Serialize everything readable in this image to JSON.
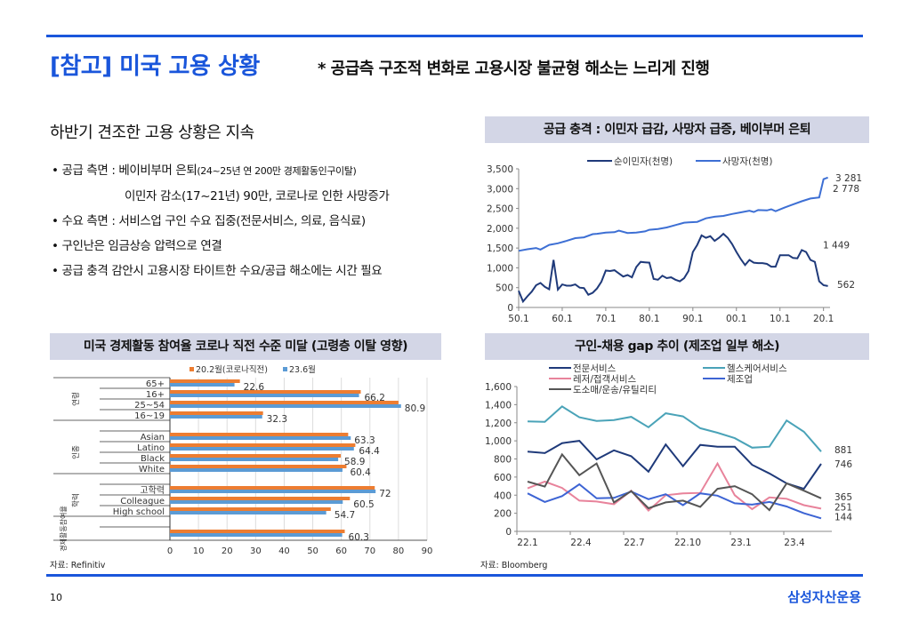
{
  "header": {
    "title": "[참고] 미국 고용 상황",
    "subtitle": "* 공급측 구조적 변화로 고용시장 불균형 해소는 느리게 진행"
  },
  "left": {
    "heading": "하반기 견조한 고용 상황은 지속",
    "bullets": [
      {
        "main": "• 공급 측면 : 베이비부머 은퇴",
        "small": "(24~25년 연 200만 경제활동인구이탈)"
      },
      {
        "main": "이민자 감소(17~21년) 90만, 코로나로 인한 사망증가",
        "small": ""
      },
      {
        "main": "• 수요 측면 : 서비스업 구인 수요 집중(전문서비스, 의료, 음식료)",
        "small": ""
      },
      {
        "main": "• 구인난은 임금상승 압력으로 연결",
        "small": ""
      },
      {
        "main": "• 공급 충격 감안시 고용시장 타이트한 수요/공급 해소에는 시간 필요",
        "small": ""
      }
    ]
  },
  "panels": {
    "supply_title": "공급 충격 : 이민자 급감, 사망자 급증, 베이부머 은퇴",
    "participation_title": "미국 경제활동 참여율 코로나 직전 수준 미달 (고령층 이탈 영향)",
    "gap_title": "구인-채용 gap 추이 (제조업 일부 해소)"
  },
  "sources": {
    "left": "자료: Refinitiv",
    "right": "자료: Bloomberg"
  },
  "footer": {
    "page": "10",
    "brand": "삼성자산운용"
  },
  "chart_data": [
    {
      "type": "line",
      "title": "공급 충격 : 이민자 급감, 사망자 급증, 베이부머 은퇴",
      "xlabel": "",
      "ylabel": "",
      "ylim": [
        0,
        3500
      ],
      "yticks": [
        0,
        500,
        1000,
        1500,
        2000,
        2500,
        3000,
        3500
      ],
      "ytick_labels": [
        "0",
        "500",
        "1,000",
        "1,500",
        "2,000",
        "2,500",
        "3,000",
        "3,500"
      ],
      "xtick_labels": [
        "50.1",
        "60.1",
        "70.1",
        "80.1",
        "90.1",
        "00.1",
        "10.1",
        "20.1"
      ],
      "x_start_year": 1950,
      "x_end_year": 2021.5,
      "legend": "top-center",
      "series": [
        {
          "name": "순이민자(천명)",
          "color": "#1f3a7a",
          "years": [
            1950,
            1951,
            1952,
            1953,
            1954,
            1955,
            1956,
            1957,
            1958,
            1959,
            1960,
            1961,
            1962,
            1963,
            1964,
            1965,
            1966,
            1967,
            1968,
            1969,
            1970,
            1971,
            1972,
            1973,
            1974,
            1975,
            1976,
            1977,
            1978,
            1979,
            1980,
            1981,
            1982,
            1983,
            1984,
            1985,
            1986,
            1987,
            1988,
            1989,
            1990,
            1991,
            1992,
            1993,
            1994,
            1995,
            1996,
            1997,
            1998,
            1999,
            2000,
            2001,
            2002,
            2003,
            2004,
            2005,
            2006,
            2007,
            2008,
            2009,
            2010,
            2011,
            2012,
            2013,
            2014,
            2015,
            2016,
            2017,
            2018,
            2019,
            2020,
            2021
          ],
          "values": [
            420,
            150,
            280,
            400,
            560,
            620,
            520,
            460,
            1200,
            450,
            580,
            550,
            550,
            580,
            500,
            490,
            320,
            370,
            480,
            650,
            930,
            920,
            940,
            860,
            780,
            820,
            760,
            1020,
            1150,
            1140,
            1130,
            720,
            700,
            800,
            740,
            760,
            700,
            660,
            740,
            920,
            1400,
            1580,
            1820,
            1760,
            1800,
            1680,
            1760,
            1860,
            1760,
            1600,
            1400,
            1220,
            1070,
            1200,
            1130,
            1120,
            1120,
            1100,
            1030,
            1030,
            1320,
            1320,
            1320,
            1250,
            1240,
            1449,
            1400,
            1200,
            1150,
            660,
            562,
            540
          ],
          "end_label": "562",
          "peak_label": "1 449"
        },
        {
          "name": "사망자(천명)",
          "color": "#3d6fd4",
          "years": [
            1950,
            1952,
            1954,
            1955,
            1957,
            1959,
            1961,
            1963,
            1965,
            1967,
            1968,
            1970,
            1972,
            1973,
            1975,
            1977,
            1979,
            1980,
            1982,
            1984,
            1986,
            1988,
            1989,
            1991,
            1993,
            1995,
            1997,
            1999,
            2001,
            2003,
            2004,
            2005,
            2007,
            2008,
            2009,
            2011,
            2013,
            2015,
            2017,
            2019,
            2020,
            2021
          ],
          "values": [
            1430,
            1470,
            1500,
            1460,
            1580,
            1620,
            1680,
            1750,
            1770,
            1850,
            1860,
            1890,
            1900,
            1940,
            1880,
            1890,
            1920,
            1960,
            1980,
            2020,
            2080,
            2140,
            2150,
            2160,
            2250,
            2290,
            2310,
            2360,
            2400,
            2440,
            2410,
            2460,
            2450,
            2480,
            2430,
            2520,
            2600,
            2680,
            2750,
            2778,
            3240,
            3281
          ],
          "end_label": "3 281",
          "mid_label": "2 778"
        }
      ]
    },
    {
      "type": "bar",
      "orientation": "horizontal",
      "title": "미국 경제활동 참여율 코로나 직전 수준 미달 (고령층 이탈 영향)",
      "xlim": [
        0,
        90
      ],
      "xticks": [
        0,
        10,
        20,
        30,
        40,
        50,
        60,
        70,
        80,
        90
      ],
      "legend": "top",
      "groups": [
        {
          "label": "연령",
          "categories": [
            "65+",
            "16+",
            "25~54",
            "16~19"
          ]
        },
        {
          "label": "인종",
          "categories": [
            "Asian",
            "Latino",
            "Black",
            "White"
          ]
        },
        {
          "label": "학력",
          "categories": [
            "고학력",
            "Colleague",
            "High school"
          ]
        },
        {
          "label": "경제활동참여율",
          "categories": [
            ""
          ]
        }
      ],
      "categories": [
        "65+",
        "16+",
        "25~54",
        "16~19",
        "Asian",
        "Latino",
        "Black",
        "White",
        "고학력",
        "Colleague",
        "High school",
        ""
      ],
      "series": [
        {
          "name": "20.2월(코로나직전)",
          "color": "#ed7d31",
          "values": [
            24.5,
            66.8,
            80.0,
            32.6,
            62.4,
            64.9,
            59.8,
            61.8,
            71.7,
            63.0,
            56.3,
            61.2
          ]
        },
        {
          "name": "23.6월",
          "color": "#5b9bd5",
          "values": [
            22.6,
            66.2,
            80.9,
            32.3,
            63.3,
            64.4,
            58.9,
            60.4,
            72.0,
            60.5,
            54.7,
            60.3
          ]
        }
      ],
      "data_labels": [
        "22.6",
        "66.2",
        "80.9",
        "32.3",
        "63.3",
        "64.4",
        "58.9",
        "60.4",
        "72",
        "60.5",
        "54.7",
        "60.3"
      ]
    },
    {
      "type": "line",
      "title": "구인-채용 gap 추이 (제조업 일부 해소)",
      "ylim": [
        0,
        1600
      ],
      "yticks": [
        0,
        200,
        400,
        600,
        800,
        1000,
        1200,
        1400,
        1600
      ],
      "ytick_labels": [
        "0",
        "200",
        "400",
        "600",
        "800",
        "1,000",
        "1,200",
        "1,400",
        "1,600"
      ],
      "x": [
        "22.1",
        "22.2",
        "22.3",
        "22.4",
        "22.5",
        "22.6",
        "22.7",
        "22.8",
        "22.9",
        "22.10",
        "22.11",
        "22.12",
        "23.1",
        "23.2",
        "23.3",
        "23.4",
        "23.5",
        "23.6"
      ],
      "xtick_labels": [
        "22.1",
        "22.4",
        "22.7",
        "22.10",
        "23.1",
        "23.4"
      ],
      "legend": "top",
      "series": [
        {
          "name": "전문서비스",
          "color": "#1f3a7a",
          "values": [
            880,
            865,
            975,
            1000,
            795,
            895,
            830,
            660,
            960,
            720,
            955,
            935,
            935,
            735,
            640,
            530,
            470,
            746
          ],
          "end_label": "746"
        },
        {
          "name": "헬스케어서비스",
          "color": "#4aa3b8",
          "values": [
            1215,
            1210,
            1380,
            1260,
            1220,
            1230,
            1265,
            1150,
            1305,
            1270,
            1140,
            1090,
            1030,
            925,
            935,
            1225,
            1100,
            881
          ],
          "end_label": "881"
        },
        {
          "name": "레저/접객서비스",
          "color": "#e8839b",
          "values": [
            475,
            550,
            480,
            340,
            330,
            300,
            450,
            230,
            400,
            420,
            425,
            750,
            400,
            245,
            375,
            360,
            290,
            251
          ],
          "end_label": "251"
        },
        {
          "name": "제조업",
          "color": "#3d64d4",
          "values": [
            420,
            325,
            390,
            520,
            365,
            370,
            440,
            355,
            410,
            290,
            420,
            395,
            310,
            295,
            325,
            275,
            200,
            144
          ],
          "end_label": "144"
        },
        {
          "name": "도소매/운송/유틸리티",
          "color": "#555555",
          "values": [
            550,
            495,
            850,
            620,
            750,
            320,
            445,
            255,
            320,
            340,
            270,
            470,
            500,
            410,
            235,
            530,
            450,
            365
          ],
          "end_label": "365"
        }
      ]
    }
  ]
}
